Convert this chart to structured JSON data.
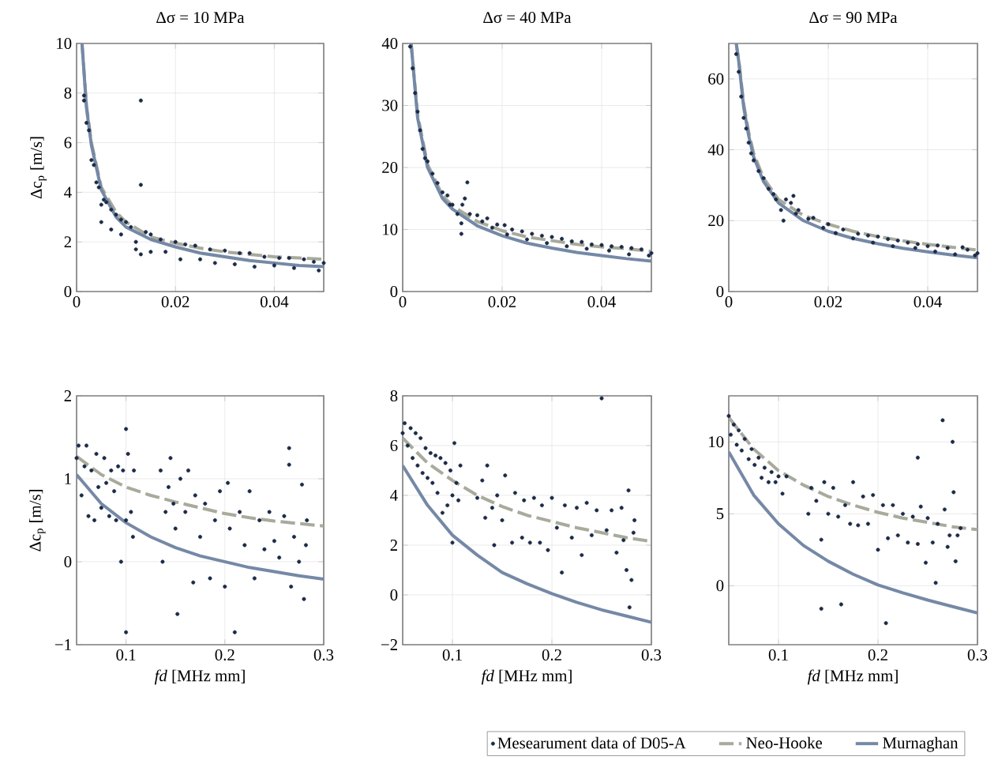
{
  "chart_data": [
    {
      "type": "scatter",
      "title": "Δσ = 10 MPa",
      "ylabel": "Δc$_{p}$ [m/s]",
      "xlim": [
        0,
        0.05
      ],
      "ylim": [
        0,
        10
      ],
      "xticks": [
        0,
        0.02,
        0.04
      ],
      "yticks": [
        0,
        2,
        4,
        6,
        8,
        10
      ],
      "grid": true,
      "series": [
        {
          "marker": "circle",
          "color": "#1b2a47",
          "x": [
            0.0015,
            0.0015,
            0.002,
            0.0025,
            0.003,
            0.0035,
            0.004,
            0.0045,
            0.005,
            0.005,
            0.0055,
            0.006,
            0.007,
            0.007,
            0.008,
            0.009,
            0.009,
            0.01,
            0.011,
            0.012,
            0.012,
            0.013,
            0.013,
            0.013,
            0.014,
            0.015,
            0.015,
            0.017,
            0.018,
            0.02,
            0.021,
            0.022,
            0.024,
            0.025,
            0.027,
            0.028,
            0.03,
            0.032,
            0.033,
            0.035,
            0.036,
            0.038,
            0.04,
            0.041,
            0.043,
            0.044,
            0.046,
            0.048,
            0.049,
            0.05
          ],
          "values": [
            7.9,
            7.7,
            6.8,
            6.5,
            5.3,
            5.1,
            4.4,
            4.2,
            3.5,
            2.8,
            3.7,
            3.6,
            3.3,
            2.5,
            3.1,
            2.9,
            2.3,
            2.8,
            2.6,
            2.0,
            1.7,
            7.7,
            4.3,
            1.5,
            2.4,
            2.3,
            1.6,
            2.1,
            1.6,
            2.0,
            1.3,
            1.9,
            1.85,
            1.3,
            1.7,
            1.15,
            1.65,
            1.1,
            1.55,
            1.55,
            1.0,
            1.4,
            1.05,
            1.35,
            1.35,
            0.95,
            1.3,
            1.2,
            0.85,
            1.15
          ]
        },
        {
          "type": "line",
          "line_style": "dashed",
          "color": "#a8aa9c",
          "x": [
            0.0011,
            0.002,
            0.003,
            0.005,
            0.008,
            0.01,
            0.015,
            0.02,
            0.025,
            0.03,
            0.035,
            0.04,
            0.045,
            0.05
          ],
          "values": [
            10,
            7.5,
            6.0,
            4.2,
            3.2,
            2.8,
            2.2,
            1.95,
            1.75,
            1.6,
            1.5,
            1.4,
            1.35,
            1.3
          ]
        },
        {
          "type": "line",
          "line_style": "solid",
          "color": "#7589a6",
          "x": [
            0.0011,
            0.002,
            0.003,
            0.005,
            0.008,
            0.01,
            0.015,
            0.02,
            0.025,
            0.03,
            0.035,
            0.04,
            0.045,
            0.05
          ],
          "values": [
            10,
            7.4,
            5.9,
            4.1,
            3.0,
            2.6,
            2.1,
            1.8,
            1.55,
            1.4,
            1.25,
            1.15,
            1.05,
            1.0
          ]
        }
      ]
    },
    {
      "type": "scatter",
      "title": "Δσ = 40 MPa",
      "xlim": [
        0,
        0.05
      ],
      "ylim": [
        0,
        40
      ],
      "xticks": [
        0,
        0.02,
        0.04
      ],
      "yticks": [
        0,
        10,
        20,
        30,
        40
      ],
      "grid": true,
      "series": [
        {
          "marker": "circle",
          "color": "#1b2a47",
          "x": [
            0.0015,
            0.002,
            0.0025,
            0.003,
            0.0035,
            0.004,
            0.0045,
            0.005,
            0.006,
            0.007,
            0.008,
            0.009,
            0.0095,
            0.01,
            0.011,
            0.0118,
            0.0118,
            0.012,
            0.0125,
            0.013,
            0.0135,
            0.015,
            0.016,
            0.017,
            0.018,
            0.019,
            0.0205,
            0.021,
            0.022,
            0.024,
            0.025,
            0.026,
            0.028,
            0.029,
            0.03,
            0.032,
            0.033,
            0.034,
            0.036,
            0.037,
            0.038,
            0.04,
            0.0415,
            0.042,
            0.044,
            0.0455,
            0.046,
            0.048,
            0.0495,
            0.05
          ],
          "values": [
            39.5,
            36,
            32,
            29,
            26,
            23,
            21.5,
            21,
            19,
            17.5,
            16,
            15.5,
            14,
            14,
            12.5,
            9.3,
            11,
            14,
            15,
            17.6,
            12.5,
            12.3,
            11.3,
            11.8,
            10.3,
            10.8,
            10.7,
            9.2,
            10,
            9.7,
            8.4,
            9.3,
            9,
            7.8,
            8.8,
            8.5,
            7.3,
            8.1,
            8,
            6.9,
            7.6,
            7.5,
            6.6,
            7.3,
            7.2,
            6,
            7.0,
            6.8,
            5.8,
            6.2
          ]
        },
        {
          "type": "line",
          "line_style": "dashed",
          "color": "#a8aa9c",
          "x": [
            0.0017,
            0.003,
            0.005,
            0.008,
            0.01,
            0.015,
            0.02,
            0.025,
            0.03,
            0.035,
            0.04,
            0.045,
            0.05
          ],
          "values": [
            40,
            28.5,
            20.5,
            15.5,
            13.8,
            11.3,
            9.8,
            8.8,
            8.2,
            7.6,
            7.2,
            6.9,
            6.5
          ]
        },
        {
          "type": "line",
          "line_style": "solid",
          "color": "#7589a6",
          "x": [
            0.0017,
            0.003,
            0.005,
            0.008,
            0.01,
            0.015,
            0.02,
            0.025,
            0.03,
            0.035,
            0.04,
            0.045,
            0.05
          ],
          "values": [
            40,
            28,
            20,
            15,
            13.3,
            10.6,
            9.0,
            7.8,
            7.0,
            6.3,
            5.8,
            5.3,
            4.9
          ]
        }
      ]
    },
    {
      "type": "scatter",
      "title": "Δσ = 90 MPa",
      "xlim": [
        0,
        0.05
      ],
      "ylim": [
        0,
        70
      ],
      "xticks": [
        0,
        0.02,
        0.04
      ],
      "yticks": [
        0,
        20,
        40,
        60
      ],
      "grid": true,
      "series": [
        {
          "marker": "circle",
          "color": "#1b2a47",
          "x": [
            0.0015,
            0.002,
            0.0025,
            0.003,
            0.0035,
            0.004,
            0.0045,
            0.005,
            0.006,
            0.007,
            0.008,
            0.009,
            0.0095,
            0.0105,
            0.011,
            0.0115,
            0.0125,
            0.013,
            0.0135,
            0.014,
            0.016,
            0.017,
            0.019,
            0.02,
            0.0215,
            0.023,
            0.025,
            0.026,
            0.028,
            0.029,
            0.03,
            0.032,
            0.033,
            0.034,
            0.036,
            0.0375,
            0.038,
            0.04,
            0.0415,
            0.042,
            0.044,
            0.0455,
            0.047,
            0.048,
            0.0495,
            0.05
          ],
          "values": [
            67,
            62,
            55,
            49,
            46,
            42,
            39,
            37,
            34,
            32,
            29,
            27.5,
            26,
            23,
            20,
            26,
            25,
            27,
            22,
            23,
            20.5,
            20.8,
            18,
            19,
            16.5,
            17.5,
            15,
            16.3,
            15.8,
            13.8,
            15.5,
            14.8,
            12.8,
            14.4,
            13.8,
            12.3,
            13.4,
            12.8,
            11.3,
            13,
            12.3,
            10.5,
            12.5,
            11.8,
            10.2,
            10.8
          ]
        },
        {
          "type": "line",
          "line_style": "dashed",
          "color": "#a8aa9c",
          "x": [
            0.0015,
            0.002,
            0.003,
            0.004,
            0.005,
            0.007,
            0.01,
            0.015,
            0.02,
            0.025,
            0.03,
            0.035,
            0.04,
            0.045,
            0.05
          ],
          "values": [
            70,
            65.5,
            53,
            45,
            39,
            32,
            26,
            21.5,
            19,
            17,
            15.5,
            14.3,
            13.3,
            12.5,
            11.7
          ]
        },
        {
          "type": "line",
          "line_style": "solid",
          "color": "#7589a6",
          "x": [
            0.0015,
            0.002,
            0.003,
            0.004,
            0.005,
            0.007,
            0.01,
            0.015,
            0.02,
            0.025,
            0.03,
            0.035,
            0.04,
            0.045,
            0.05
          ],
          "values": [
            70,
            65,
            52,
            44,
            38,
            31,
            25,
            20,
            17,
            15,
            13.5,
            12.2,
            11.2,
            10.3,
            9.5
          ]
        }
      ]
    },
    {
      "type": "scatter",
      "xlabel": "*fd* [MHz mm]",
      "ylabel": "Δc$_{p}$ [m/s]",
      "xlim": [
        0.05,
        0.3
      ],
      "ylim": [
        -1,
        2
      ],
      "xticks": [
        0.1,
        0.2,
        0.3
      ],
      "yticks": [
        {
          "value": -1,
          "label": "−1"
        },
        0,
        1,
        2
      ],
      "grid": true,
      "series": [
        {
          "marker": "circle",
          "color": "#1b2a47",
          "x": [
            0.05,
            0.052,
            0.055,
            0.058,
            0.06,
            0.062,
            0.065,
            0.068,
            0.07,
            0.072,
            0.075,
            0.078,
            0.08,
            0.083,
            0.085,
            0.088,
            0.09,
            0.092,
            0.095,
            0.097,
            0.1,
            0.1,
            0.1,
            0.102,
            0.105,
            0.107,
            0.108,
            0.135,
            0.137,
            0.14,
            0.143,
            0.145,
            0.148,
            0.15,
            0.152,
            0.155,
            0.16,
            0.163,
            0.168,
            0.17,
            0.175,
            0.18,
            0.185,
            0.19,
            0.195,
            0.2,
            0.203,
            0.205,
            0.21,
            0.215,
            0.22,
            0.225,
            0.23,
            0.235,
            0.24,
            0.245,
            0.25,
            0.255,
            0.26,
            0.265,
            0.265,
            0.267,
            0.27,
            0.275,
            0.278,
            0.28,
            0.282,
            0.283
          ],
          "values": [
            1.25,
            1.4,
            0.8,
            1.15,
            1.4,
            0.55,
            1.1,
            0.5,
            1.3,
            0.9,
            0.65,
            1.25,
            0.95,
            0.55,
            1.1,
            0.85,
            0.5,
            1.15,
            0.0,
            1.1,
            1.6,
            -0.85,
            0.5,
            1.3,
            0.6,
            0.3,
            1.1,
            1.1,
            0.0,
            0.6,
            0.9,
            1.25,
            0.7,
            0.4,
            -0.63,
            1.0,
            0.6,
            1.1,
            -0.25,
            0.8,
            0.3,
            0.7,
            -0.2,
            0.5,
            0.85,
            -0.3,
            0.95,
            0.4,
            -0.85,
            0.6,
            0.2,
            0.85,
            -0.2,
            0.5,
            0.15,
            0.6,
            0.25,
            0.05,
            0.55,
            1.37,
            1.17,
            -0.3,
            0.3,
            0.0,
            0.93,
            -0.45,
            0.2,
            0.5
          ]
        },
        {
          "type": "line",
          "line_style": "dashed",
          "color": "#a8aa9c",
          "x": [
            0.05,
            0.075,
            0.1,
            0.125,
            0.15,
            0.175,
            0.2,
            0.225,
            0.25,
            0.275,
            0.3
          ],
          "values": [
            1.27,
            1.05,
            0.9,
            0.8,
            0.72,
            0.65,
            0.58,
            0.53,
            0.49,
            0.46,
            0.43
          ]
        },
        {
          "type": "line",
          "line_style": "solid",
          "color": "#7589a6",
          "x": [
            0.05,
            0.075,
            0.1,
            0.125,
            0.15,
            0.175,
            0.2,
            0.225,
            0.25,
            0.275,
            0.3
          ],
          "values": [
            1.05,
            0.7,
            0.47,
            0.3,
            0.17,
            0.07,
            0.0,
            -0.07,
            -0.12,
            -0.17,
            -0.21
          ]
        }
      ]
    },
    {
      "type": "scatter",
      "xlabel": "*fd* [MHz mm]",
      "xlim": [
        0.05,
        0.3
      ],
      "ylim": [
        -2,
        8
      ],
      "xticks": [
        0.1,
        0.2,
        0.3
      ],
      "yticks": [
        {
          "value": -2,
          "label": "−2"
        },
        0,
        2,
        4,
        6,
        8
      ],
      "grid": true,
      "series": [
        {
          "marker": "circle",
          "color": "#1b2a47",
          "x": [
            0.05,
            0.052,
            0.055,
            0.058,
            0.06,
            0.063,
            0.065,
            0.068,
            0.07,
            0.073,
            0.075,
            0.078,
            0.08,
            0.083,
            0.085,
            0.088,
            0.09,
            0.093,
            0.095,
            0.098,
            0.1,
            0.1,
            0.102,
            0.104,
            0.106,
            0.108,
            0.125,
            0.13,
            0.133,
            0.135,
            0.14,
            0.142,
            0.145,
            0.15,
            0.153,
            0.16,
            0.163,
            0.17,
            0.172,
            0.178,
            0.182,
            0.188,
            0.19,
            0.196,
            0.2,
            0.205,
            0.21,
            0.213,
            0.22,
            0.225,
            0.23,
            0.235,
            0.24,
            0.245,
            0.25,
            0.255,
            0.26,
            0.265,
            0.27,
            0.272,
            0.275,
            0.277,
            0.278,
            0.28,
            0.282,
            0.283
          ],
          "values": [
            6.5,
            6.9,
            6.0,
            6.7,
            5.5,
            6.5,
            5.2,
            6.3,
            4.9,
            5.9,
            4.7,
            5.7,
            4.5,
            5.6,
            4.1,
            5.5,
            3.3,
            5.3,
            3.6,
            5.0,
            2.1,
            4.0,
            6.1,
            4.5,
            3.8,
            5.2,
            3.9,
            4.6,
            3.1,
            5.2,
            3.5,
            2.0,
            4.0,
            3.0,
            4.8,
            2.1,
            4.1,
            2.3,
            3.8,
            2.1,
            3.9,
            2.1,
            3.6,
            1.8,
            3.9,
            2.7,
            0.9,
            3.6,
            2.3,
            3.5,
            1.6,
            3.7,
            2.4,
            3.4,
            7.9,
            2.6,
            3.4,
            1.7,
            3.5,
            2.2,
            1.0,
            4.2,
            -0.5,
            0.6,
            2.5,
            3.0
          ]
        },
        {
          "type": "line",
          "line_style": "dashed",
          "color": "#a8aa9c",
          "x": [
            0.05,
            0.075,
            0.1,
            0.125,
            0.15,
            0.175,
            0.2,
            0.225,
            0.25,
            0.275,
            0.3
          ],
          "values": [
            6.3,
            5.3,
            4.6,
            4.0,
            3.55,
            3.2,
            2.95,
            2.7,
            2.5,
            2.3,
            2.15
          ]
        },
        {
          "type": "line",
          "line_style": "solid",
          "color": "#7589a6",
          "x": [
            0.05,
            0.075,
            0.1,
            0.125,
            0.15,
            0.175,
            0.2,
            0.225,
            0.25,
            0.275,
            0.3
          ],
          "values": [
            5.2,
            3.6,
            2.4,
            1.6,
            0.9,
            0.45,
            0.05,
            -0.3,
            -0.6,
            -0.85,
            -1.1
          ]
        }
      ]
    },
    {
      "type": "scatter",
      "xlabel": "*fd* [MHz mm]",
      "xlim": [
        0.05,
        0.3
      ],
      "ylim": [
        -4.1,
        13.2
      ],
      "xticks": [
        0.1,
        0.2,
        0.3
      ],
      "yticks": [
        0,
        5,
        10
      ],
      "grid": true,
      "legend": "bottom",
      "series": [
        {
          "name": "Mesearument data of D05-A",
          "marker": "circle",
          "color": "#1b2a47",
          "x": [
            0.05,
            0.052,
            0.055,
            0.058,
            0.06,
            0.063,
            0.066,
            0.07,
            0.073,
            0.076,
            0.08,
            0.083,
            0.086,
            0.09,
            0.093,
            0.097,
            0.1,
            0.104,
            0.108,
            0.13,
            0.133,
            0.138,
            0.143,
            0.143,
            0.146,
            0.15,
            0.155,
            0.16,
            0.163,
            0.167,
            0.172,
            0.175,
            0.18,
            0.185,
            0.19,
            0.195,
            0.2,
            0.205,
            0.208,
            0.21,
            0.215,
            0.22,
            0.225,
            0.23,
            0.235,
            0.24,
            0.24,
            0.243,
            0.248,
            0.25,
            0.255,
            0.258,
            0.26,
            0.265,
            0.267,
            0.27,
            0.272,
            0.275,
            0.276,
            0.278,
            0.28,
            0.283
          ],
          "values": [
            11.8,
            10.5,
            11.2,
            9.8,
            10.8,
            9.4,
            10.2,
            8.8,
            9.5,
            8.4,
            8.9,
            7.5,
            8.2,
            7.2,
            7.9,
            7.2,
            7.6,
            6.4,
            7.6,
            5.0,
            6.8,
            5.9,
            3.2,
            -1.6,
            7.2,
            5.0,
            6.8,
            4.8,
            -1.3,
            5.6,
            4.3,
            7.2,
            4.2,
            6.2,
            4.3,
            6.3,
            2.5,
            5.6,
            -2.6,
            3.3,
            5.6,
            3.5,
            5.0,
            3.0,
            4.8,
            8.9,
            2.9,
            5.5,
            1.6,
            4.7,
            3.0,
            0.2,
            4.3,
            11.5,
            5.3,
            2.7,
            3.5,
            10.0,
            6.5,
            1.7,
            3.5,
            4.0
          ]
        },
        {
          "name": "Neo-Hooke",
          "type": "line",
          "line_style": "dashed",
          "color": "#a8aa9c",
          "x": [
            0.05,
            0.075,
            0.1,
            0.125,
            0.15,
            0.175,
            0.2,
            0.225,
            0.25,
            0.275,
            0.3
          ],
          "values": [
            11.7,
            9.5,
            8.0,
            7.0,
            6.2,
            5.6,
            5.1,
            4.7,
            4.4,
            4.1,
            3.9
          ]
        },
        {
          "name": "Murnaghan",
          "type": "line",
          "line_style": "solid",
          "color": "#7589a6",
          "x": [
            0.05,
            0.075,
            0.1,
            0.125,
            0.15,
            0.175,
            0.2,
            0.225,
            0.25,
            0.275,
            0.3
          ],
          "values": [
            9.3,
            6.3,
            4.3,
            2.8,
            1.7,
            0.8,
            0.05,
            -0.5,
            -1.0,
            -1.45,
            -1.9
          ]
        }
      ]
    }
  ]
}
